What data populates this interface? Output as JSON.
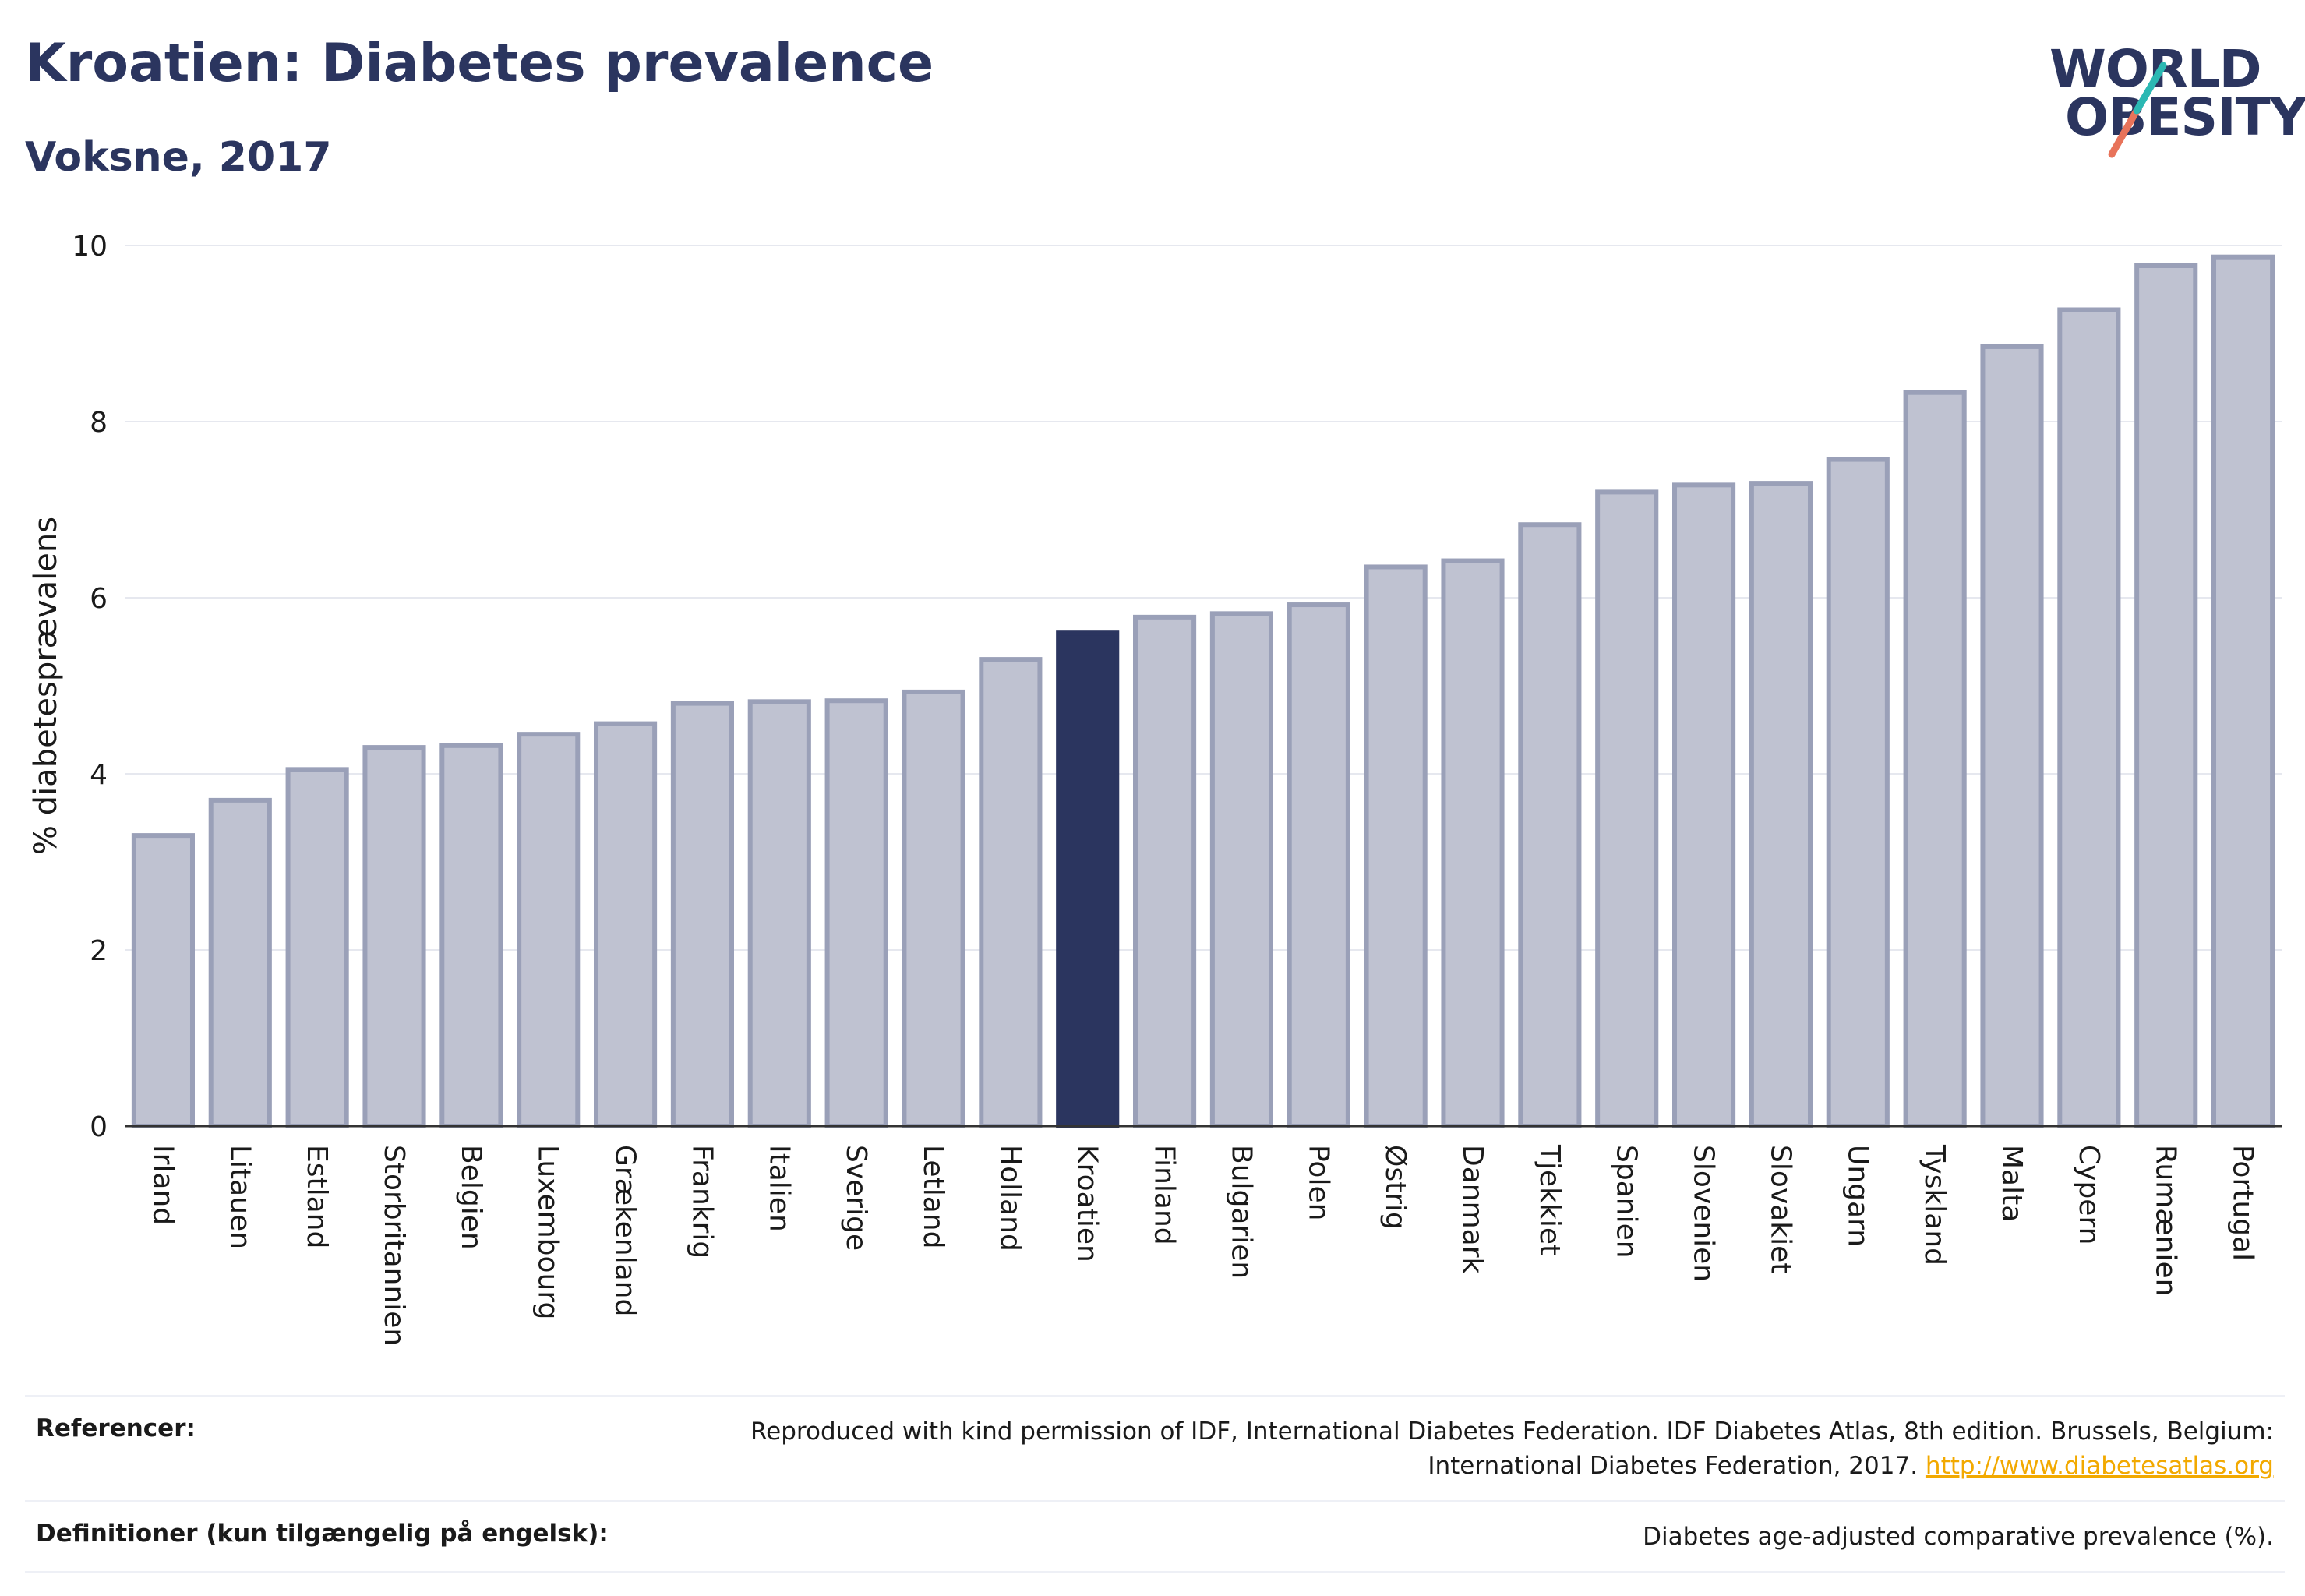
{
  "header": {
    "title": "Kroatien: Diabetes prevalence",
    "subtitle": "Voksne, 2017"
  },
  "logo": {
    "line1": "WORLD",
    "line2": "OBESITY",
    "colors": {
      "text": "#2b355f",
      "teal": "#2bb8b3",
      "coral": "#e8735a"
    }
  },
  "colors": {
    "bar_default_fill": "#bfc2d1",
    "bar_default_stroke": "#9aa0b8",
    "bar_highlight": "#2b355f",
    "grid": "#e6e8ef",
    "axis_text": "#1a1a1a"
  },
  "chart_data": {
    "type": "bar",
    "title": "",
    "xlabel": "",
    "ylabel": "% diabetesprævalens",
    "ylim": [
      0,
      10
    ],
    "yticks": [
      0,
      2,
      4,
      6,
      8,
      10
    ],
    "grid": true,
    "highlight": "Kroatien",
    "categories": [
      "Irland",
      "Litauen",
      "Estland",
      "Storbritannien",
      "Belgien",
      "Luxembourg",
      "Grækenland",
      "Frankrig",
      "Italien",
      "Sverige",
      "Letland",
      "Holland",
      "Kroatien",
      "Finland",
      "Bulgarien",
      "Polen",
      "Østrig",
      "Danmark",
      "Tjekkiet",
      "Spanien",
      "Slovenien",
      "Slovakiet",
      "Ungarn",
      "Tyskland",
      "Malta",
      "Cypern",
      "Rumænien",
      "Portugal"
    ],
    "values": [
      3.3,
      3.7,
      4.05,
      4.3,
      4.32,
      4.45,
      4.57,
      4.8,
      4.82,
      4.83,
      4.93,
      5.3,
      5.6,
      5.78,
      5.82,
      5.92,
      6.35,
      6.42,
      6.83,
      7.2,
      7.28,
      7.3,
      7.57,
      8.33,
      8.85,
      9.27,
      9.77,
      9.87
    ]
  },
  "footer": {
    "references_label": "Referencer:",
    "references_text": "Reproduced with kind permission of IDF, International Diabetes Federation. IDF Diabetes Atlas, 8th edition. Brussels, Belgium: International Diabetes Federation, 2017.",
    "references_link": "http://www.diabetesatlas.org",
    "definitions_label": "Definitioner (kun tilgængelig på engelsk):",
    "definitions_text": "Diabetes age-adjusted comparative prevalence (%)."
  }
}
